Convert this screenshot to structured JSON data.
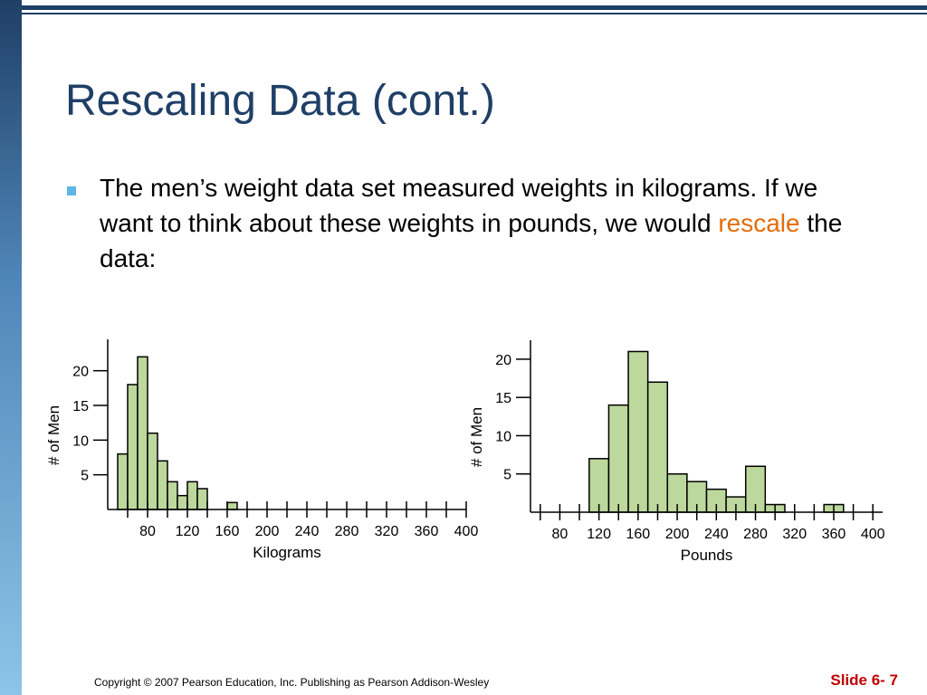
{
  "title": "Rescaling Data (cont.)",
  "body": {
    "text_before": "The men’s weight data set measured weights in kilograms. If we want to think about these weights in pounds, we would ",
    "highlight": "rescale",
    "text_after": " the data:",
    "highlight_color": "#e46c0a"
  },
  "footer": {
    "copyright": "Copyright © 2007 Pearson Education, Inc. Publishing as Pearson Addison-Wesley",
    "slide_number": "Slide 6- 7"
  },
  "colors": {
    "title": "#1f3f66",
    "bar_fill": "#bcd89c",
    "bullet": "#5cb6e6",
    "slide_number": "#c00000"
  },
  "chart_data": [
    {
      "type": "bar",
      "xlabel": "Kilograms",
      "ylabel": "# of Men",
      "xlim": [
        40,
        400
      ],
      "ylim": [
        0,
        24
      ],
      "x_ticks": [
        80,
        120,
        160,
        200,
        240,
        280,
        320,
        360,
        400
      ],
      "x_minor_ticks": [
        60,
        100,
        140,
        180,
        220,
        260,
        300,
        340,
        380
      ],
      "y_ticks": [
        5,
        10,
        15,
        20
      ],
      "bin_width": 10,
      "bin_starts": [
        50,
        60,
        70,
        80,
        90,
        100,
        110,
        120,
        130,
        160
      ],
      "values": [
        8,
        18,
        22,
        11,
        7,
        4,
        2,
        4,
        3,
        1
      ]
    },
    {
      "type": "bar",
      "xlabel": "Pounds",
      "ylabel": "# of Men",
      "xlim": [
        50,
        410
      ],
      "ylim": [
        0,
        22
      ],
      "x_ticks": [
        80,
        120,
        160,
        200,
        240,
        280,
        320,
        360,
        400
      ],
      "x_minor_ticks": [
        60,
        100,
        140,
        180,
        220,
        260,
        300,
        340,
        380
      ],
      "y_ticks": [
        5,
        10,
        15,
        20
      ],
      "bin_width": 20,
      "bin_starts": [
        110,
        130,
        150,
        170,
        190,
        210,
        230,
        250,
        270,
        290,
        350
      ],
      "values": [
        7,
        14,
        21,
        17,
        5,
        4,
        3,
        2,
        6,
        1,
        1
      ]
    }
  ]
}
